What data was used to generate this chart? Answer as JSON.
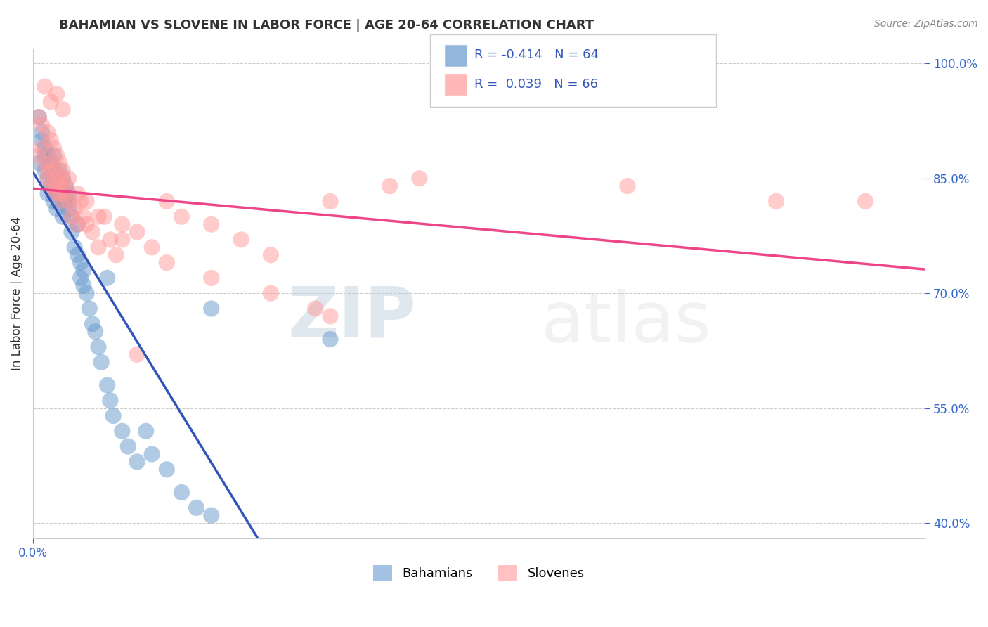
{
  "title": "BAHAMIAN VS SLOVENE IN LABOR FORCE | AGE 20-64 CORRELATION CHART",
  "source_text": "Source: ZipAtlas.com",
  "ylabel": "In Labor Force | Age 20-64",
  "legend_labels": [
    "Bahamians",
    "Slovenes"
  ],
  "r_blue": -0.414,
  "n_blue": 64,
  "r_pink": 0.039,
  "n_pink": 66,
  "blue_color": "#6699CC",
  "pink_color": "#FF9999",
  "trend_blue": "#3355BB",
  "trend_pink": "#EE4488",
  "xlim": [
    0.0,
    0.3
  ],
  "ylim": [
    0.38,
    1.02
  ],
  "yticks": [
    0.4,
    0.55,
    0.7,
    0.85,
    1.0
  ],
  "blue_scatter_x": [
    0.002,
    0.003,
    0.004,
    0.004,
    0.005,
    0.005,
    0.006,
    0.006,
    0.007,
    0.007,
    0.007,
    0.008,
    0.008,
    0.008,
    0.009,
    0.009,
    0.01,
    0.01,
    0.01,
    0.011,
    0.011,
    0.012,
    0.012,
    0.013,
    0.013,
    0.014,
    0.015,
    0.015,
    0.016,
    0.016,
    0.017,
    0.017,
    0.018,
    0.019,
    0.02,
    0.021,
    0.022,
    0.023,
    0.025,
    0.026,
    0.027,
    0.03,
    0.032,
    0.035,
    0.038,
    0.04,
    0.045,
    0.05,
    0.055,
    0.06,
    0.002,
    0.003,
    0.004,
    0.005,
    0.006,
    0.007,
    0.008,
    0.009,
    0.01,
    0.011,
    0.012,
    0.025,
    0.06,
    0.1
  ],
  "blue_scatter_y": [
    0.87,
    0.9,
    0.88,
    0.86,
    0.85,
    0.83,
    0.87,
    0.84,
    0.88,
    0.82,
    0.86,
    0.83,
    0.85,
    0.81,
    0.86,
    0.84,
    0.82,
    0.85,
    0.8,
    0.83,
    0.84,
    0.82,
    0.83,
    0.78,
    0.8,
    0.76,
    0.79,
    0.75,
    0.72,
    0.74,
    0.71,
    0.73,
    0.7,
    0.68,
    0.66,
    0.65,
    0.63,
    0.61,
    0.58,
    0.56,
    0.54,
    0.52,
    0.5,
    0.48,
    0.52,
    0.49,
    0.47,
    0.44,
    0.42,
    0.41,
    0.93,
    0.91,
    0.89,
    0.88,
    0.87,
    0.86,
    0.85,
    0.84,
    0.83,
    0.82,
    0.81,
    0.72,
    0.68,
    0.64
  ],
  "pink_scatter_x": [
    0.002,
    0.003,
    0.004,
    0.005,
    0.005,
    0.006,
    0.006,
    0.007,
    0.007,
    0.008,
    0.008,
    0.009,
    0.009,
    0.01,
    0.01,
    0.011,
    0.011,
    0.012,
    0.013,
    0.014,
    0.015,
    0.016,
    0.017,
    0.018,
    0.02,
    0.022,
    0.024,
    0.026,
    0.028,
    0.03,
    0.035,
    0.04,
    0.045,
    0.05,
    0.06,
    0.07,
    0.08,
    0.1,
    0.12,
    0.13,
    0.002,
    0.003,
    0.005,
    0.006,
    0.007,
    0.008,
    0.009,
    0.01,
    0.012,
    0.015,
    0.018,
    0.022,
    0.03,
    0.045,
    0.06,
    0.08,
    0.004,
    0.006,
    0.008,
    0.01,
    0.035,
    0.095,
    0.2,
    0.25,
    0.28,
    0.1
  ],
  "pink_scatter_y": [
    0.88,
    0.89,
    0.87,
    0.86,
    0.85,
    0.84,
    0.87,
    0.83,
    0.86,
    0.84,
    0.85,
    0.83,
    0.84,
    0.82,
    0.85,
    0.83,
    0.84,
    0.82,
    0.8,
    0.81,
    0.79,
    0.82,
    0.8,
    0.79,
    0.78,
    0.76,
    0.8,
    0.77,
    0.75,
    0.79,
    0.78,
    0.76,
    0.82,
    0.8,
    0.79,
    0.77,
    0.75,
    0.82,
    0.84,
    0.85,
    0.93,
    0.92,
    0.91,
    0.9,
    0.89,
    0.88,
    0.87,
    0.86,
    0.85,
    0.83,
    0.82,
    0.8,
    0.77,
    0.74,
    0.72,
    0.7,
    0.97,
    0.95,
    0.96,
    0.94,
    0.62,
    0.68,
    0.84,
    0.82,
    0.82,
    0.67
  ]
}
